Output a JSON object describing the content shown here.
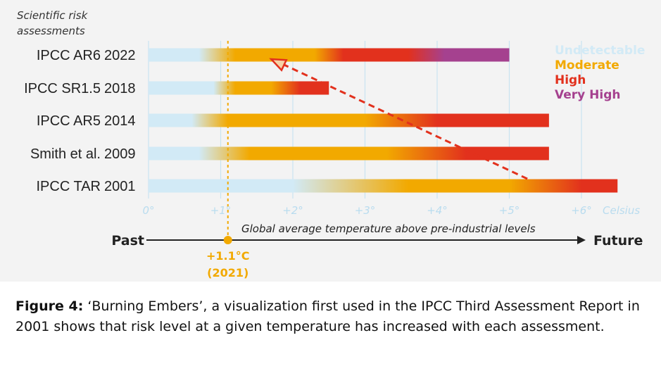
{
  "caption": {
    "label": "Figure 4:",
    "text": " ‘Burning Embers’, a visualization first used in the IPCC Third Assessment Report in 2001 shows that risk level at a given temperature has increased with each assessment."
  },
  "chart_data": {
    "type": "bar",
    "header": "Scientific risk assessments",
    "xlabel": "Global average temperature above pre-industrial levels",
    "x_unit": "Celsius",
    "xlim": [
      0,
      6.5
    ],
    "x_ticks": [
      {
        "value": 0,
        "label": "0°"
      },
      {
        "value": 1,
        "label": "+1°"
      },
      {
        "value": 2,
        "label": "+2°"
      },
      {
        "value": 3,
        "label": "+3°"
      },
      {
        "value": 4,
        "label": "+4°"
      },
      {
        "value": 5,
        "label": "+5°"
      },
      {
        "value": 6,
        "label": "+6°"
      }
    ],
    "timeline": {
      "past_label": "Past",
      "future_label": "Future"
    },
    "marker": {
      "value": 1.1,
      "label": "+1.1°C",
      "year_label": "(2021)",
      "color": "#f2a900"
    },
    "legend": [
      {
        "name": "Undetectable",
        "color": "#d2eaf6"
      },
      {
        "name": "Moderate",
        "color": "#f2a900"
      },
      {
        "name": "High",
        "color": "#e2311d"
      },
      {
        "name": "Very High",
        "color": "#a5418f"
      }
    ],
    "rows": [
      {
        "assessment": "IPCC AR6",
        "year": "2022",
        "end": 5.0,
        "stops": [
          [
            0,
            "#d2eaf6"
          ],
          [
            0.7,
            "#d2eaf6"
          ],
          [
            1.2,
            "#f2a900"
          ],
          [
            2.3,
            "#f2a900"
          ],
          [
            2.7,
            "#e2311d"
          ],
          [
            3.6,
            "#e2311d"
          ],
          [
            4.1,
            "#a5418f"
          ],
          [
            5.0,
            "#a5418f"
          ]
        ]
      },
      {
        "assessment": "IPCC SR1.5",
        "year": "2018",
        "end": 2.5,
        "stops": [
          [
            0,
            "#d2eaf6"
          ],
          [
            0.9,
            "#d2eaf6"
          ],
          [
            1.2,
            "#f2a900"
          ],
          [
            1.7,
            "#f2a900"
          ],
          [
            2.1,
            "#e2311d"
          ],
          [
            2.5,
            "#e2311d"
          ]
        ]
      },
      {
        "assessment": "IPCC AR5",
        "year": "2014",
        "end": 5.55,
        "stops": [
          [
            0,
            "#d2eaf6"
          ],
          [
            0.6,
            "#d2eaf6"
          ],
          [
            1.1,
            "#f2a900"
          ],
          [
            3.0,
            "#f2a900"
          ],
          [
            4.0,
            "#e2311d"
          ],
          [
            5.55,
            "#e2311d"
          ]
        ]
      },
      {
        "assessment": "Smith et al.",
        "year": "2009",
        "end": 5.55,
        "stops": [
          [
            0,
            "#d2eaf6"
          ],
          [
            0.7,
            "#d2eaf6"
          ],
          [
            1.4,
            "#f2a900"
          ],
          [
            3.3,
            "#f2a900"
          ],
          [
            4.4,
            "#e2311d"
          ],
          [
            5.55,
            "#e2311d"
          ]
        ]
      },
      {
        "assessment": "IPCC TAR",
        "year": "2001",
        "end": 6.5,
        "stops": [
          [
            0,
            "#d2eaf6"
          ],
          [
            2.0,
            "#d2eaf6"
          ],
          [
            3.6,
            "#f2a900"
          ],
          [
            5.0,
            "#f2a900"
          ],
          [
            6.0,
            "#e2311d"
          ],
          [
            6.5,
            "#e2311d"
          ]
        ]
      }
    ],
    "trend_arrow": {
      "from": {
        "row": 4,
        "x": 5.25
      },
      "to": {
        "row": 0,
        "x": 1.7
      },
      "color": "#e2311d"
    }
  }
}
